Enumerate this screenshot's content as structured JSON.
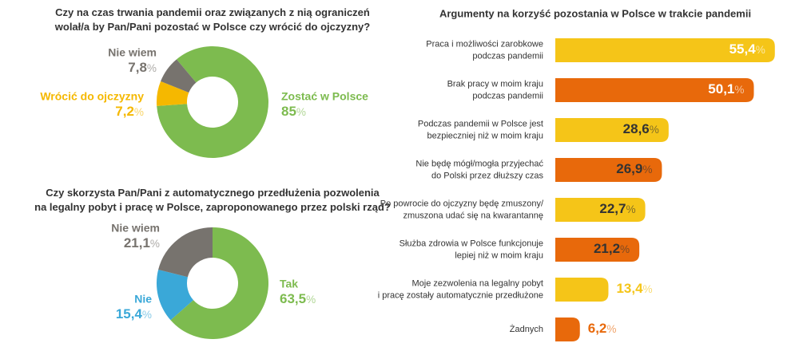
{
  "chart_data": [
    {
      "type": "donut",
      "title": "Czy na czas trwania pandemii oraz związanych z nią ograniczeń\nwolał/a by Pan/Pani pozostać w Polsce czy wrócić do ojczyzny?",
      "categories": [
        "Zostać w Polsce",
        "Wrócić do ojczyzny",
        "Nie wiem"
      ],
      "values": [
        85,
        7.2,
        7.8
      ],
      "value_labels": [
        "85%",
        "7,2%",
        "7,8%"
      ],
      "colors": [
        "#7dbb4f",
        "#f5b800",
        "#77736e"
      ]
    },
    {
      "type": "donut",
      "title": "Czy skorzysta Pan/Pani z automatycznego przedłużenia pozwolenia\nna legalny pobyt i pracę w Polsce, zaproponowanego przez polski rząd?",
      "categories": [
        "Tak",
        "Nie",
        "Nie wiem"
      ],
      "values": [
        63.5,
        15.4,
        21.1
      ],
      "value_labels": [
        "63,5%",
        "15,4%",
        "21,1%"
      ],
      "colors": [
        "#7dbb4f",
        "#3aa8d8",
        "#77736e"
      ]
    },
    {
      "type": "hbar",
      "title": "Argumenty na korzyść pozostania w Polsce w trakcie pandemii",
      "categories": [
        "Praca i możliwości zarobkowe\npodczas pandemii",
        "Brak pracy w moim kraju\npodczas pandemii",
        "Podczas pandemii w Polsce jest\nbezpieczniej niż w moim kraju",
        "Nie będę mógł/mogła przyjechać\ndo Polski przez dłuższy czas",
        "Po powrocie do ojczyzny będę zmuszony/\nzmuszona udać się na kwarantannę",
        "Służba zdrowia w Polsce funkcjonuje\nlepiej niż w moim kraju",
        "Moje zezwolenia na legalny pobyt\ni pracę zostały automatycznie przedłużone",
        "Żadnych"
      ],
      "values": [
        55.4,
        50.1,
        28.6,
        26.9,
        22.7,
        21.2,
        13.4,
        6.2
      ],
      "value_labels": [
        "55,4%",
        "50,1%",
        "28,6%",
        "26,9%",
        "22,7%",
        "21,2%",
        "13,4%",
        "6,2%"
      ],
      "colors": [
        "#f5c518",
        "#e8690b",
        "#f5c518",
        "#e8690b",
        "#f5c518",
        "#e8690b",
        "#f5c518",
        "#e8690b"
      ]
    }
  ]
}
